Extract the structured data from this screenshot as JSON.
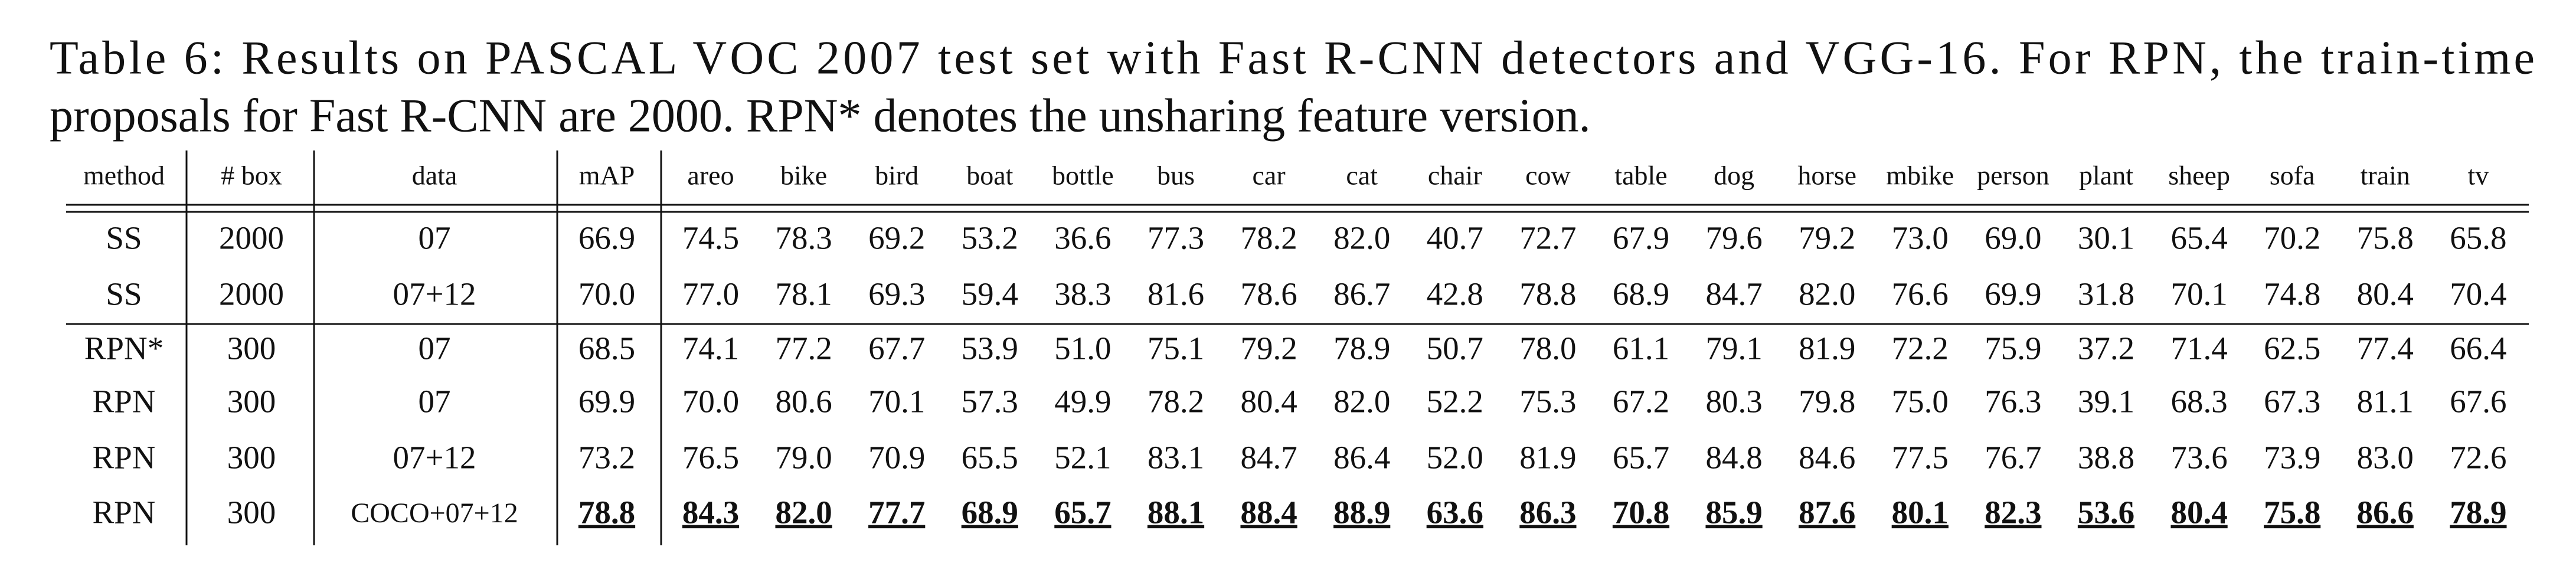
{
  "caption": {
    "lines": [
      "Table 6: Results on PASCAL VOC 2007 test set with Fast R-CNN detectors and VGG-16. For RPN, the train-time",
      "proposals for Fast R-CNN are 2000. RPN* denotes the unsharing feature version."
    ]
  },
  "table": {
    "header": [
      "method",
      "# box",
      "data",
      "mAP",
      "areo",
      "bike",
      "bird",
      "boat",
      "bottle",
      "bus",
      "car",
      "cat",
      "chair",
      "cow",
      "table",
      "dog",
      "horse",
      "mbike",
      "person",
      "plant",
      "sheep",
      "sofa",
      "train",
      "tv"
    ],
    "rows": [
      [
        "SS",
        "2000",
        "07",
        "66.9",
        "74.5",
        "78.3",
        "69.2",
        "53.2",
        "36.6",
        "77.3",
        "78.2",
        "82.0",
        "40.7",
        "72.7",
        "67.9",
        "79.6",
        "79.2",
        "73.0",
        "69.0",
        "30.1",
        "65.4",
        "70.2",
        "75.8",
        "65.8"
      ],
      [
        "SS",
        "2000",
        "07+12",
        "70.0",
        "77.0",
        "78.1",
        "69.3",
        "59.4",
        "38.3",
        "81.6",
        "78.6",
        "86.7",
        "42.8",
        "78.8",
        "68.9",
        "84.7",
        "82.0",
        "76.6",
        "69.9",
        "31.8",
        "70.1",
        "74.8",
        "80.4",
        "70.4"
      ],
      [
        "RPN*",
        "300",
        "07",
        "68.5",
        "74.1",
        "77.2",
        "67.7",
        "53.9",
        "51.0",
        "75.1",
        "79.2",
        "78.9",
        "50.7",
        "78.0",
        "61.1",
        "79.1",
        "81.9",
        "72.2",
        "75.9",
        "37.2",
        "71.4",
        "62.5",
        "77.4",
        "66.4"
      ],
      [
        "RPN",
        "300",
        "07",
        "69.9",
        "70.0",
        "80.6",
        "70.1",
        "57.3",
        "49.9",
        "78.2",
        "80.4",
        "82.0",
        "52.2",
        "75.3",
        "67.2",
        "80.3",
        "79.8",
        "75.0",
        "76.3",
        "39.1",
        "68.3",
        "67.3",
        "81.1",
        "67.6"
      ],
      [
        "RPN",
        "300",
        "07+12",
        "73.2",
        "76.5",
        "79.0",
        "70.9",
        "65.5",
        "52.1",
        "83.1",
        "84.7",
        "86.4",
        "52.0",
        "81.9",
        "65.7",
        "84.8",
        "84.6",
        "77.5",
        "76.7",
        "38.8",
        "73.6",
        "73.9",
        "83.0",
        "72.6"
      ],
      [
        "RPN",
        "300",
        "COCO+07+12",
        "78.8",
        "84.3",
        "82.0",
        "77.7",
        "68.9",
        "65.7",
        "88.1",
        "88.4",
        "88.9",
        "63.6",
        "86.3",
        "70.8",
        "85.9",
        "87.6",
        "80.1",
        "82.3",
        "53.6",
        "80.4",
        "75.8",
        "86.6",
        "78.9"
      ]
    ]
  }
}
